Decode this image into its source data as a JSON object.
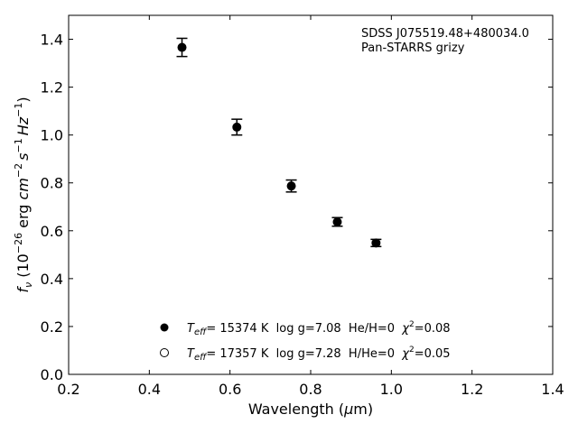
{
  "chart_data": {
    "type": "scatter",
    "annotation": [
      "SDSS J075519.48+480034.0",
      "Pan-STARRS grizy"
    ],
    "xlabel": {
      "prefix": "Wavelength (",
      "sym": "μ",
      "suffix": "m)"
    },
    "ylabel": {
      "f": "f",
      "nu": "ν",
      "open": " (10",
      "e1": "−26",
      "mid": " erg ",
      "cm": "cm",
      "e2": "−2",
      "s": "s",
      "e3": "−1",
      "hz": "Hz",
      "e4": "−1",
      "close": ")"
    },
    "xlim": [
      0.2,
      1.4
    ],
    "ylim": [
      0.0,
      1.5
    ],
    "xticks": [
      "0.2",
      "0.4",
      "0.6",
      "0.8",
      "1.0",
      "1.2",
      "1.4"
    ],
    "yticks": [
      "0.0",
      "0.2",
      "0.4",
      "0.6",
      "0.8",
      "1.0",
      "1.2",
      "1.4"
    ],
    "series": [
      {
        "marker": "filled-circle",
        "x": [
          0.481,
          0.617,
          0.752,
          0.866,
          0.962
        ],
        "y": [
          1.366,
          1.033,
          0.787,
          0.637,
          0.549
        ],
        "yerr": [
          0.038,
          0.033,
          0.025,
          0.018,
          0.015
        ]
      }
    ],
    "legend": {
      "placement": "lower-center",
      "entries": [
        {
          "marker": "filled",
          "teff_label": "T",
          "teff_sub": "eff",
          "teff_value": "= 15374 K  log g=7.08  He/H=0  ",
          "chi": "χ",
          "chi_sup": "2",
          "chi_value": "=0.08"
        },
        {
          "marker": "open",
          "teff_label": "T",
          "teff_sub": "eff",
          "teff_value": "= 17357 K  log g=7.28  H/He=0  ",
          "chi": "χ",
          "chi_sup": "2",
          "chi_value": "=0.05"
        }
      ]
    },
    "grid": false
  }
}
